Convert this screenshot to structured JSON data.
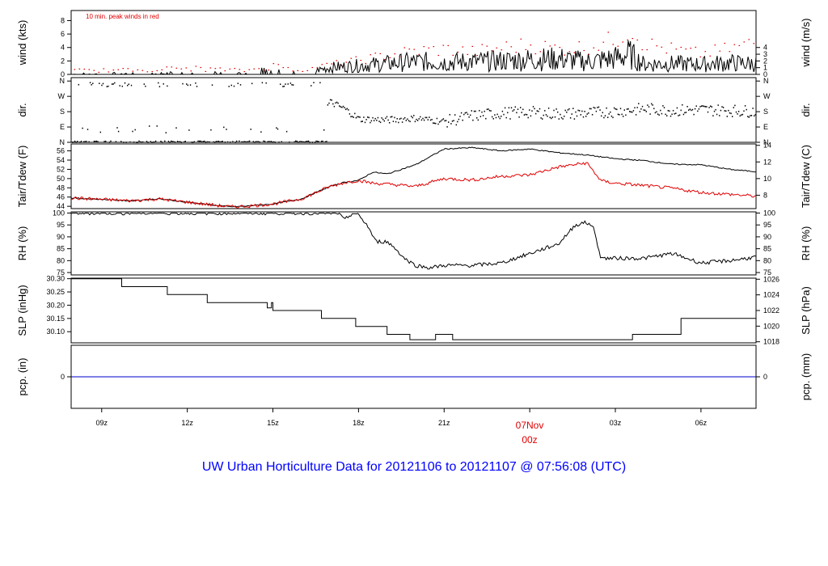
{
  "chart_data": {
    "type": "line",
    "title": "UW Urban Horticulture Data for 20121106  to  20121107 @ 07:56:08  (UTC)",
    "title_color": "#0000ff",
    "x_axis": {
      "ticks": [
        "09z",
        "12z",
        "15z",
        "18z",
        "21z",
        "00z",
        "03z",
        "06z"
      ],
      "tick_hours": [
        9,
        12,
        15,
        18,
        21,
        24,
        27,
        30
      ],
      "range_hours": [
        7.93,
        31.93
      ],
      "date_label": "07Nov",
      "date_sublabel": "00z",
      "date_label_color": "#e00000"
    },
    "panels": [
      {
        "id": "wind",
        "ylabel_left": "wind (kts)",
        "ylabel_right": "wind (m/s)",
        "annotation": "10 min. peak winds in red",
        "annotation_color": "#e00000",
        "left_ticks": [
          "0",
          "2",
          "4",
          "6",
          "8"
        ],
        "left_values": [
          0,
          2,
          4,
          6,
          8
        ],
        "right_ticks": [
          "0",
          "1",
          "2",
          "3",
          "4"
        ],
        "right_values": [
          0,
          1,
          2,
          3,
          4
        ],
        "ylim": [
          0,
          9.5
        ],
        "series": [
          {
            "name": "wind",
            "color": "#000000",
            "style": "line",
            "x": [
              8,
              10,
              12,
              14,
              15,
              16,
              16.5,
              17,
              18,
              19,
              20,
              21,
              22,
              23,
              24,
              25,
              26,
              27,
              27.5,
              28,
              29,
              30,
              31,
              31.9
            ],
            "y": [
              0.1,
              0.2,
              0.3,
              0.2,
              0.8,
              0.3,
              0.6,
              1.0,
              1.3,
              1.6,
              1.9,
              1.8,
              1.9,
              2.0,
              2.2,
              2.3,
              1.9,
              2.4,
              3.0,
              1.5,
              1.6,
              1.5,
              1.7,
              1.6
            ]
          },
          {
            "name": "peak",
            "color": "#e00000",
            "style": "points",
            "x": [
              8,
              10,
              12,
              14,
              15,
              16,
              17,
              18,
              19,
              20,
              21,
              22,
              23,
              24,
              25,
              26,
              27,
              27.5,
              28,
              29,
              30,
              31,
              31.9
            ],
            "y": [
              0.9,
              1.0,
              1.4,
              0.9,
              1.9,
              1.0,
              2.0,
              2.8,
              3.8,
              4.6,
              4.9,
              4.4,
              5.2,
              5.8,
              5.0,
              5.4,
              6.8,
              9.0,
              6.0,
              4.8,
              4.0,
              5.0,
              6.2
            ]
          }
        ]
      },
      {
        "id": "dir",
        "ylabel_left": "dir.",
        "ylabel_right": "dir.",
        "left_ticks": [
          "N",
          "W",
          "S",
          "E",
          "N"
        ],
        "left_values": [
          360,
          270,
          180,
          90,
          0
        ],
        "right_ticks": [
          "N",
          "W",
          "S",
          "E",
          "N"
        ],
        "right_values": [
          360,
          270,
          180,
          90,
          0
        ],
        "ylim": [
          0,
          380
        ],
        "series": [
          {
            "name": "direction",
            "color": "#000000",
            "style": "points",
            "x": [
              8,
              9,
              10,
              11,
              12,
              13,
              14,
              15,
              16,
              17,
              17.5,
              18,
              19,
              20,
              21,
              22,
              23,
              24,
              25,
              26,
              27,
              28,
              29,
              30,
              31,
              31.9
            ],
            "y": [
              10,
              340,
              20,
              330,
              15,
              10,
              20,
              10,
              30,
              240,
              200,
              140,
              135,
              145,
              125,
              160,
              175,
              180,
              170,
              175,
              185,
              200,
              190,
              195,
              190,
              185
            ]
          }
        ]
      },
      {
        "id": "temp",
        "ylabel_left": "Tair/Tdew (F)",
        "ylabel_right": "Tair/Tdew (C)",
        "left_ticks": [
          "44",
          "46",
          "48",
          "50",
          "52",
          "54",
          "56"
        ],
        "left_values": [
          44,
          46,
          48,
          50,
          52,
          54,
          56
        ],
        "right_ticks": [
          "8",
          "10",
          "12",
          "14"
        ],
        "right_values": [
          46.4,
          50,
          53.6,
          57.2
        ],
        "ylim": [
          43.5,
          57.5
        ],
        "series": [
          {
            "name": "Tair",
            "color": "#000000",
            "style": "line",
            "x": [
              7.93,
              9,
              10,
              11,
              12,
              13,
              13.5,
              14,
              15,
              16,
              17,
              17.5,
              18,
              18.5,
              19,
              20,
              21,
              22,
              23,
              24,
              25,
              26,
              27,
              28,
              29,
              30,
              31,
              31.93
            ],
            "y": [
              45.8,
              45.5,
              45.2,
              45.6,
              44.9,
              44.2,
              43.9,
              44.0,
              44.5,
              45.6,
              48.3,
              49.2,
              49.6,
              51.4,
              51.0,
              53.0,
              56.4,
              56.7,
              56.0,
              56.4,
              55.6,
              55.1,
              54.3,
              53.9,
              53.1,
              53.0,
              52.0,
              51.5
            ]
          },
          {
            "name": "Tdew",
            "color": "#e00000",
            "style": "line",
            "x": [
              7.93,
              9,
              10,
              11,
              12,
              13,
              13.5,
              14,
              15,
              16,
              17,
              17.5,
              18,
              18.5,
              19,
              20,
              21,
              22,
              23,
              24,
              25,
              26,
              26.5,
              27,
              28,
              29,
              30,
              31,
              31.93
            ],
            "y": [
              45.8,
              45.5,
              45.2,
              45.6,
              44.9,
              44.2,
              43.9,
              44.0,
              44.5,
              45.6,
              48.3,
              49.1,
              49.6,
              49.0,
              48.8,
              48.3,
              50.0,
              49.7,
              50.5,
              50.8,
              52.5,
              53.4,
              49.5,
              49.0,
              48.5,
              47.9,
              47.0,
              46.6,
              46.2
            ]
          }
        ]
      },
      {
        "id": "rh",
        "ylabel_left": "RH (%)",
        "ylabel_right": "RH (%)",
        "left_ticks": [
          "75",
          "80",
          "85",
          "90",
          "95",
          "100"
        ],
        "left_values": [
          75,
          80,
          85,
          90,
          95,
          100
        ],
        "right_ticks": [
          "75",
          "80",
          "85",
          "90",
          "95",
          "100"
        ],
        "right_values": [
          75,
          80,
          85,
          90,
          95,
          100
        ],
        "ylim": [
          74,
          100.5
        ],
        "series": [
          {
            "name": "RH",
            "color": "#000000",
            "style": "line",
            "x": [
              7.93,
              17.3,
              17.5,
              17.8,
              18.0,
              18.3,
              18.6,
              19.0,
              19.3,
              19.6,
              20.0,
              20.5,
              21.0,
              22.0,
              23.0,
              24.0,
              24.5,
              25.0,
              25.6,
              25.9,
              26.2,
              26.5,
              27.0,
              28.0,
              29.0,
              30.0,
              31.0,
              31.93
            ],
            "y": [
              100,
              100,
              97,
              100,
              99,
              95,
              88,
              88,
              85,
              81,
              78,
              77,
              78,
              78,
              79,
              83,
              85,
              87,
              95,
              96,
              95,
              81,
              81,
              81,
              83,
              79,
              80,
              81.5
            ]
          }
        ]
      },
      {
        "id": "slp",
        "ylabel_left": "SLP (inHg)",
        "ylabel_right": "SLP (hPa)",
        "left_ticks": [
          "30.10",
          "30.15",
          "30.20",
          "30.25",
          "30.30"
        ],
        "left_values": [
          30.1,
          30.15,
          30.2,
          30.25,
          30.3
        ],
        "right_ticks": [
          "1018",
          "1020",
          "1022",
          "1024",
          "1026"
        ],
        "right_values": [
          30.062,
          30.121,
          30.18,
          30.239,
          30.298
        ],
        "ylim": [
          30.058,
          30.302
        ],
        "series": [
          {
            "name": "SLP",
            "color": "#000000",
            "style": "step",
            "x": [
              7.93,
              9.7,
              11.3,
              12.7,
              14.8,
              14.95,
              15.0,
              16.7,
              17.9,
              19.0,
              19.8,
              20.4,
              20.7,
              21.3,
              22.1,
              24.7,
              24.9,
              26.5,
              27.6,
              28.4,
              29.3,
              31.93
            ],
            "y": [
              30.3,
              30.27,
              30.24,
              30.21,
              30.19,
              30.21,
              30.18,
              30.15,
              30.12,
              30.09,
              30.07,
              30.07,
              30.09,
              30.07,
              30.07,
              30.07,
              30.07,
              30.07,
              30.09,
              30.09,
              30.15,
              30.15
            ]
          }
        ]
      },
      {
        "id": "pcp",
        "ylabel_left": "pcp. (in)",
        "ylabel_right": "pcp. (mm)",
        "left_ticks": [
          "0"
        ],
        "left_values": [
          0
        ],
        "right_ticks": [
          "0"
        ],
        "right_values": [
          0
        ],
        "ylim": [
          -1,
          1
        ],
        "series": [
          {
            "name": "pcp",
            "color": "#0000cc",
            "style": "line",
            "x": [
              7.93,
              31.93
            ],
            "y": [
              0,
              0
            ]
          }
        ]
      }
    ]
  }
}
